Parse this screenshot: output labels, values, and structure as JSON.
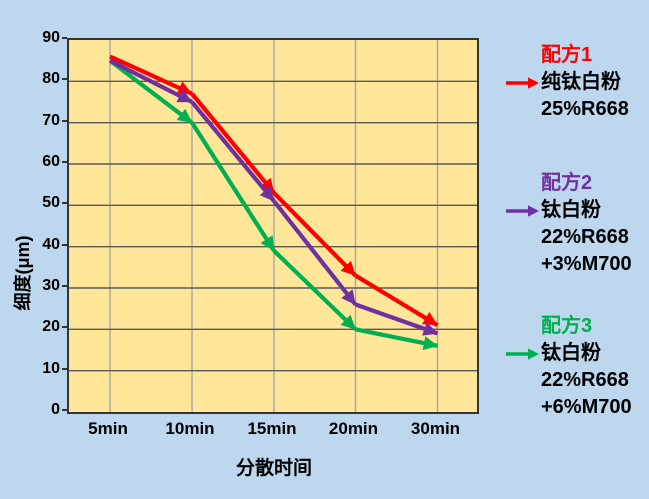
{
  "chart_data": {
    "type": "line",
    "categories": [
      "5min",
      "10min",
      "15min",
      "20min",
      "30min"
    ],
    "series": [
      {
        "name": "配方1",
        "color": "#FF0000",
        "values": [
          86,
          77,
          53,
          33,
          21
        ]
      },
      {
        "name": "配方2",
        "color": "#7030A0",
        "values": [
          85,
          75,
          51,
          26,
          19
        ]
      },
      {
        "name": "配方3",
        "color": "#00B050",
        "values": [
          85,
          70,
          39,
          20,
          16
        ]
      }
    ],
    "draw_order": [
      2,
      0,
      1
    ],
    "xlabel": "分散时间",
    "ylabel": "细度(μm)",
    "ylim": [
      0,
      90
    ],
    "ytick_step": 10,
    "y_tick_labels": [
      "90",
      "80",
      "70",
      "60",
      "50",
      "40",
      "30",
      "20",
      "10",
      "0"
    ],
    "grid": true,
    "legend_position": "right",
    "marker": "arrow"
  },
  "axes": {
    "x_title": "分散时间",
    "y_title": "细度(μm)"
  },
  "legend": {
    "items": [
      {
        "title": "配方1",
        "color": "#FF0000",
        "lines": [
          "纯钛白粉",
          "25%R668"
        ]
      },
      {
        "title": "配方2",
        "color": "#7030A0",
        "lines": [
          "钛白粉",
          "22%R668",
          "+3%M700"
        ]
      },
      {
        "title": "配方3",
        "color": "#00B050",
        "lines": [
          "钛白粉",
          "22%R668",
          "+6%M700"
        ]
      }
    ]
  },
  "colors": {
    "background": "#BDD7EE",
    "plot_background": "#FFE699",
    "h_gridline": "#595959",
    "v_gridline": "#A6A6A6",
    "axis_border": "#333333",
    "text": "#000000"
  }
}
